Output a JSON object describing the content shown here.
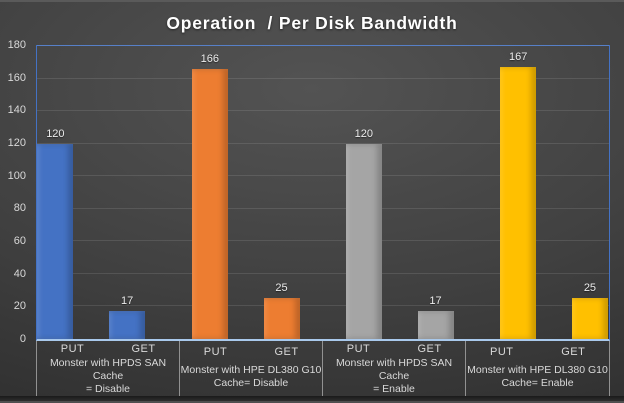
{
  "title": "Operation  / Per Disk Bandwidth",
  "chart_data": {
    "type": "bar",
    "title": "Operation  / Per Disk Bandwidth",
    "value_labels_shown": true,
    "legend": "none",
    "grid": true,
    "background_theme": "dark",
    "y_axis": {
      "min": 0,
      "max": 180,
      "step": 20,
      "ticks": [
        0,
        20,
        40,
        60,
        80,
        100,
        120,
        140,
        160,
        180
      ]
    },
    "series_categories": [
      "PUT",
      "GET"
    ],
    "groups": [
      {
        "label": "Monster with HPDS SAN Cache\n= Disable",
        "color": "#4472C4",
        "bars": [
          {
            "category": "PUT",
            "value": 120
          },
          {
            "category": "GET",
            "value": 17
          }
        ]
      },
      {
        "label": "Monster with HPE DL380 G10\nCache= Disable",
        "color": "#ED7D31",
        "bars": [
          {
            "category": "PUT",
            "value": 166
          },
          {
            "category": "GET",
            "value": 25
          }
        ]
      },
      {
        "label": "Monster with HPDS SAN Cache\n= Enable",
        "color": "#A5A5A5",
        "bars": [
          {
            "category": "PUT",
            "value": 120
          },
          {
            "category": "GET",
            "value": 17
          }
        ]
      },
      {
        "label": "Monster with HPE DL380 G10\nCache= Enable",
        "color": "#FFC000",
        "bars": [
          {
            "category": "PUT",
            "value": 167
          },
          {
            "category": "GET",
            "value": 25
          }
        ]
      }
    ],
    "colors": {
      "plot_border": "#4472C4",
      "axis_line": "#A9C9EC",
      "axis_text": "#D9D9D9",
      "title_text": "#FFFFFF"
    }
  }
}
